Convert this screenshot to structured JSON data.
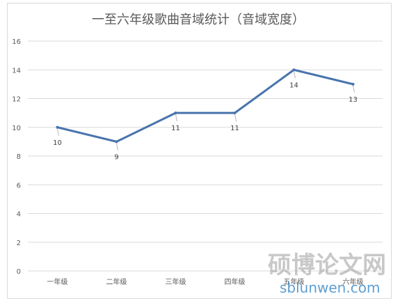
{
  "chart_data": {
    "type": "line",
    "title": "一至六年级歌曲音域统计（音域宽度）",
    "xlabel": "",
    "ylabel": "",
    "categories": [
      "一年级",
      "二年级",
      "三年级",
      "四年级",
      "五年级",
      "六年级"
    ],
    "series": [
      {
        "name": "",
        "values": [
          10,
          9,
          11,
          11,
          14,
          13
        ],
        "color": "#4a74ad"
      }
    ],
    "ylim": [
      0,
      16
    ],
    "yticks": [
      0,
      2,
      4,
      6,
      8,
      10,
      12,
      14,
      16
    ],
    "grid": true,
    "legend": "none",
    "data_labels": [
      "10",
      "9",
      "11",
      "11",
      "14",
      "13"
    ]
  },
  "watermark": {
    "chinese": "硕博论文网",
    "latin": "sblunwen.com"
  },
  "colors": {
    "grid": "#d9d9d9",
    "axis_text": "#595959"
  }
}
